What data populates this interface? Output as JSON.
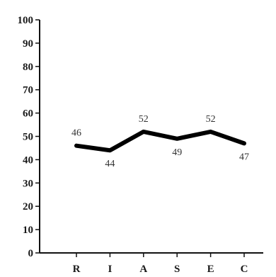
{
  "chart_data": {
    "type": "line",
    "title": "",
    "xlabel": "",
    "ylabel": "",
    "categories": [
      "R",
      "I",
      "A",
      "S",
      "E",
      "C"
    ],
    "series": [
      {
        "values": [
          46,
          44,
          52,
          49,
          52,
          47
        ],
        "color": "#000000"
      }
    ],
    "data_labels": [
      "46",
      "44",
      "52",
      "49",
      "52",
      "47"
    ],
    "ylim": [
      0,
      100
    ],
    "yticks": [
      "0",
      "10",
      "20",
      "30",
      "40",
      "50",
      "60",
      "70",
      "80",
      "90",
      "100"
    ],
    "grid": false,
    "legend": "none"
  }
}
